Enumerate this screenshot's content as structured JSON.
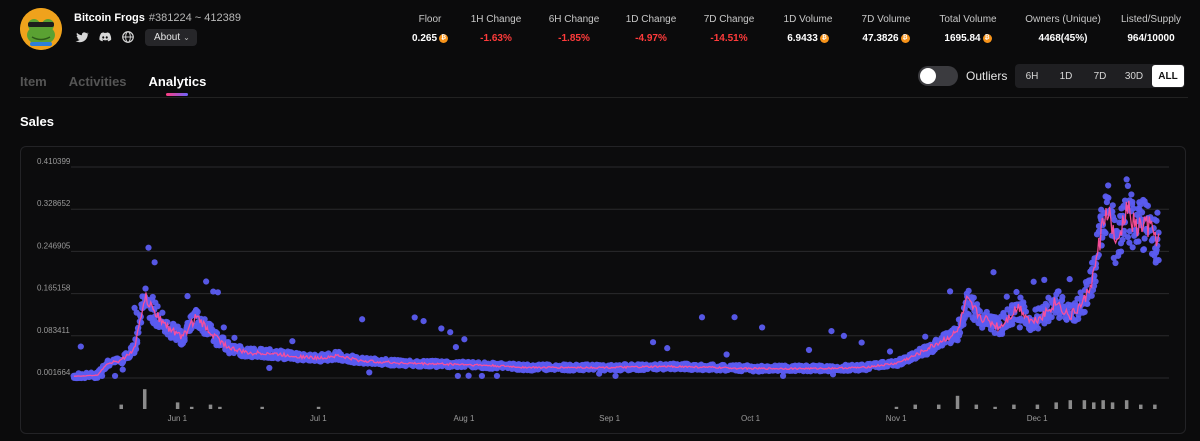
{
  "collection": {
    "name": "Bitcoin Frogs",
    "range": "#381224 ~ 412389",
    "about_label": "About"
  },
  "socials": [
    "twitter-icon",
    "discord-icon",
    "globe-icon"
  ],
  "stats": [
    {
      "label": "Floor",
      "value": "0.265",
      "btc": true,
      "negative": false
    },
    {
      "label": "1H Change",
      "value": "-1.63%",
      "btc": false,
      "negative": true
    },
    {
      "label": "6H Change",
      "value": "-1.85%",
      "btc": false,
      "negative": true
    },
    {
      "label": "1D Change",
      "value": "-4.97%",
      "btc": false,
      "negative": true
    },
    {
      "label": "7D Change",
      "value": "-14.51%",
      "btc": false,
      "negative": true
    },
    {
      "label": "1D Volume",
      "value": "6.9433",
      "btc": true,
      "negative": false
    },
    {
      "label": "7D Volume",
      "value": "47.3826",
      "btc": true,
      "negative": false
    },
    {
      "label": "Total Volume",
      "value": "1695.84",
      "btc": true,
      "negative": false
    },
    {
      "label": "Owners (Unique)",
      "value": "4468(45%)",
      "btc": false,
      "negative": false
    },
    {
      "label": "Listed/Supply",
      "value": "964/10000",
      "btc": false,
      "negative": false
    }
  ],
  "tabs": [
    {
      "label": "Item",
      "active": false
    },
    {
      "label": "Activities",
      "active": false
    },
    {
      "label": "Analytics",
      "active": true
    }
  ],
  "outliers": {
    "label": "Outliers",
    "enabled": false
  },
  "ranges": [
    {
      "label": "6H",
      "active": false
    },
    {
      "label": "1D",
      "active": false
    },
    {
      "label": "7D",
      "active": false
    },
    {
      "label": "30D",
      "active": false
    },
    {
      "label": "ALL",
      "active": true
    }
  ],
  "section_title": "Sales",
  "colors": {
    "accent_pink": "#ff4f9a",
    "scatter_blue": "#5b5cf0",
    "negative": "#ff3b3b",
    "btc_orange": "#f7931a"
  },
  "chart_data": {
    "type": "scatter",
    "yticks": [
      "0.410399",
      "0.328652",
      "0.246905",
      "0.165158",
      "0.083411",
      "0.001664"
    ],
    "ylim": [
      0.001664,
      0.410399
    ],
    "xticks": [
      "Jun 1",
      "Jul 1",
      "Aug 1",
      "Sep 1",
      "Oct 1",
      "Nov 1",
      "Dec 1"
    ],
    "series": [
      {
        "kind": "average-line",
        "points": [
          [
            "May 10",
            0.005
          ],
          [
            "May 15",
            0.007
          ],
          [
            "May 17",
            0.03
          ],
          [
            "May 20",
            0.035
          ],
          [
            "May 23",
            0.06
          ],
          [
            "May 25",
            0.16
          ],
          [
            "May 27",
            0.13
          ],
          [
            "May 30",
            0.1
          ],
          [
            "Jun 2",
            0.08
          ],
          [
            "Jun 5",
            0.12
          ],
          [
            "Jun 8",
            0.09
          ],
          [
            "Jun 12",
            0.06
          ],
          [
            "Jun 16",
            0.05
          ],
          [
            "Jun 20",
            0.05
          ],
          [
            "Jun 25",
            0.045
          ],
          [
            "Jul 1",
            0.04
          ],
          [
            "Jul 5",
            0.045
          ],
          [
            "Jul 10",
            0.035
          ],
          [
            "Jul 20",
            0.03
          ],
          [
            "Aug 1",
            0.028
          ],
          [
            "Aug 15",
            0.022
          ],
          [
            "Sep 1",
            0.022
          ],
          [
            "Sep 15",
            0.024
          ],
          [
            "Oct 1",
            0.02
          ],
          [
            "Oct 15",
            0.02
          ],
          [
            "Oct 25",
            0.022
          ],
          [
            "Nov 1",
            0.03
          ],
          [
            "Nov 5",
            0.045
          ],
          [
            "Nov 10",
            0.07
          ],
          [
            "Nov 14",
            0.09
          ],
          [
            "Nov 16",
            0.15
          ],
          [
            "Nov 19",
            0.12
          ],
          [
            "Nov 23",
            0.1
          ],
          [
            "Nov 27",
            0.14
          ],
          [
            "Nov 30",
            0.11
          ],
          [
            "Dec 3",
            0.13
          ],
          [
            "Dec 5",
            0.15
          ],
          [
            "Dec 8",
            0.12
          ],
          [
            "Dec 11",
            0.15
          ],
          [
            "Dec 13",
            0.2
          ],
          [
            "Dec 15",
            0.3
          ],
          [
            "Dec 16",
            0.33
          ],
          [
            "Dec 18",
            0.25
          ],
          [
            "Dec 20",
            0.33
          ],
          [
            "Dec 22",
            0.29
          ],
          [
            "Dec 24",
            0.3
          ],
          [
            "Dec 27",
            0.27
          ]
        ]
      }
    ],
    "volume_bars": [
      {
        "x": "May 20",
        "value": 2
      },
      {
        "x": "May 25",
        "value": 9
      },
      {
        "x": "Jun 1",
        "value": 3
      },
      {
        "x": "Jun 4",
        "value": 1
      },
      {
        "x": "Jun 8",
        "value": 2
      },
      {
        "x": "Jun 10",
        "value": 1
      },
      {
        "x": "Jun 19",
        "value": 1
      },
      {
        "x": "Jul 1",
        "value": 1
      },
      {
        "x": "Nov 1",
        "value": 1
      },
      {
        "x": "Nov 5",
        "value": 2
      },
      {
        "x": "Nov 10",
        "value": 2
      },
      {
        "x": "Nov 14",
        "value": 6
      },
      {
        "x": "Nov 18",
        "value": 2
      },
      {
        "x": "Nov 22",
        "value": 1
      },
      {
        "x": "Nov 26",
        "value": 2
      },
      {
        "x": "Dec 1",
        "value": 2
      },
      {
        "x": "Dec 5",
        "value": 3
      },
      {
        "x": "Dec 8",
        "value": 4
      },
      {
        "x": "Dec 11",
        "value": 4
      },
      {
        "x": "Dec 13",
        "value": 3
      },
      {
        "x": "Dec 15",
        "value": 4
      },
      {
        "x": "Dec 17",
        "value": 3
      },
      {
        "x": "Dec 20",
        "value": 4
      },
      {
        "x": "Dec 23",
        "value": 2
      },
      {
        "x": "Dec 26",
        "value": 2
      }
    ],
    "grid": true
  }
}
